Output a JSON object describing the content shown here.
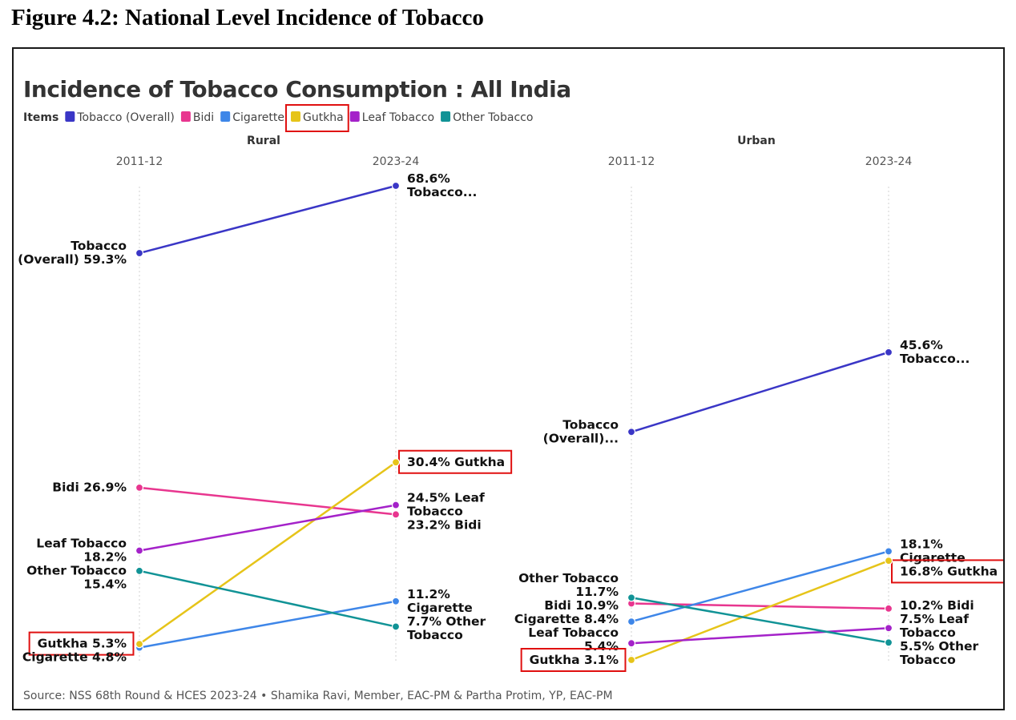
{
  "figure_heading": "Figure 4.2: National Level Incidence of Tobacco",
  "chart_data": {
    "type": "line",
    "title": "Incidence of Tobacco Consumption : All India",
    "legend_title": "Items",
    "legend_position": "top-left",
    "series_meta": [
      {
        "name": "Tobacco (Overall)",
        "color": "#3a36c6"
      },
      {
        "name": "Bidi",
        "color": "#e8368f"
      },
      {
        "name": "Cigarette",
        "color": "#3e86e8"
      },
      {
        "name": "Gutkha",
        "color": "#e6c419"
      },
      {
        "name": "Leaf Tobacco",
        "color": "#a422c9"
      },
      {
        "name": "Other Tobacco",
        "color": "#119396"
      }
    ],
    "ylim": [
      3.1,
      68.6
    ],
    "panels": [
      {
        "name": "Rural",
        "periods": [
          "2011-12",
          "2023-24"
        ],
        "series": [
          {
            "name": "Tobacco (Overall)",
            "values": [
              59.3,
              68.6
            ],
            "start_label": [
              "Tobacco",
              "(Overall) 59.3%"
            ],
            "end_label": [
              "68.6%",
              "Tobacco..."
            ]
          },
          {
            "name": "Bidi",
            "values": [
              26.9,
              23.2
            ],
            "start_label": [
              "Bidi 26.9%"
            ],
            "end_label": [
              "23.2% Bidi"
            ]
          },
          {
            "name": "Cigarette",
            "values": [
              4.8,
              11.2
            ],
            "start_label": [
              "Cigarette 4.8%"
            ],
            "end_label": [
              "11.2%",
              "Cigarette"
            ]
          },
          {
            "name": "Gutkha",
            "values": [
              5.3,
              30.4
            ],
            "start_label": [
              "Gutkha 5.3%"
            ],
            "end_label": [
              "30.4% Gutkha"
            ]
          },
          {
            "name": "Leaf Tobacco",
            "values": [
              18.2,
              24.5
            ],
            "start_label": [
              "Leaf Tobacco",
              "18.2%"
            ],
            "end_label": [
              "24.5% Leaf",
              "Tobacco"
            ]
          },
          {
            "name": "Other Tobacco",
            "values": [
              15.4,
              7.7
            ],
            "start_label": [
              "Other Tobacco",
              "15.4%"
            ],
            "end_label": [
              "7.7% Other",
              "Tobacco"
            ]
          }
        ]
      },
      {
        "name": "Urban",
        "periods": [
          "2011-12",
          "2023-24"
        ],
        "series": [
          {
            "name": "Tobacco (Overall)",
            "values": [
              34.6,
              45.6
            ],
            "start_label": [
              "Tobacco",
              "(Overall)..."
            ],
            "end_label": [
              "45.6%",
              "Tobacco..."
            ]
          },
          {
            "name": "Bidi",
            "values": [
              10.9,
              10.2
            ],
            "start_label": [
              "Bidi 10.9%"
            ],
            "end_label": [
              "10.2% Bidi"
            ]
          },
          {
            "name": "Cigarette",
            "values": [
              8.4,
              18.1
            ],
            "start_label": [
              "Cigarette 8.4%"
            ],
            "end_label": [
              "18.1%",
              "Cigarette"
            ]
          },
          {
            "name": "Gutkha",
            "values": [
              3.1,
              16.8
            ],
            "start_label": [
              "Gutkha 3.1%"
            ],
            "end_label": [
              "16.8% Gutkha"
            ]
          },
          {
            "name": "Leaf Tobacco",
            "values": [
              5.4,
              7.5
            ],
            "start_label": [
              "Leaf Tobacco",
              "5.4%"
            ],
            "end_label": [
              "7.5% Leaf",
              "Tobacco"
            ]
          },
          {
            "name": "Other Tobacco",
            "values": [
              11.7,
              5.5
            ],
            "start_label": [
              "Other Tobacco",
              "11.7%"
            ],
            "end_label": [
              "5.5% Other",
              "Tobacco"
            ]
          }
        ]
      }
    ],
    "highlighted": [
      "Gutkha"
    ],
    "source": "Source: NSS 68th Round & HCES 2023-24 • Shamika Ravi, Member, EAC-PM & Partha Protim, YP, EAC-PM"
  }
}
